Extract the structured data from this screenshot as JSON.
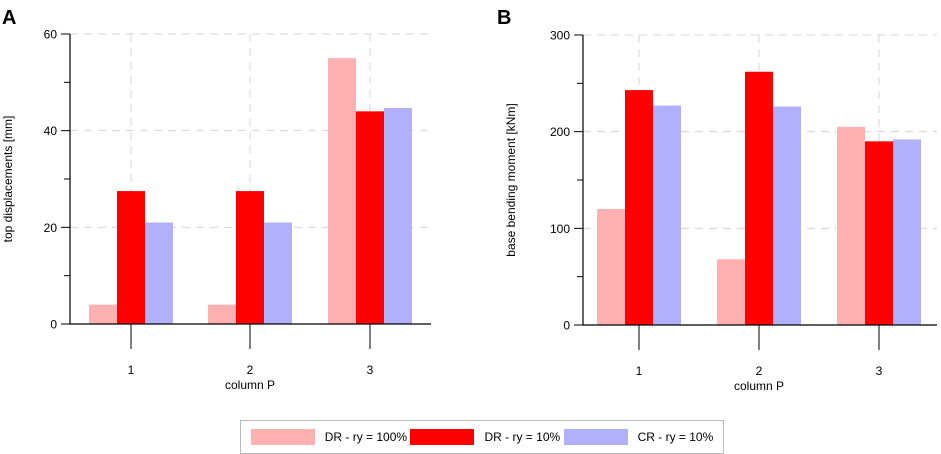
{
  "legend": [
    {
      "label": "DR - ry = 100%",
      "color": "#ffb1b1"
    },
    {
      "label": "DR - ry = 10%",
      "color": "#ff0000"
    },
    {
      "label": "CR - ry = 10%",
      "color": "#b0b0fb"
    }
  ],
  "chart_data": [
    {
      "panel_label": "A",
      "type": "bar",
      "categories": [
        "1",
        "2",
        "3"
      ],
      "xlabel": "column P",
      "ylabel": "top displacements [mm]",
      "ylim": [
        0,
        60
      ],
      "yticks": [
        0,
        20,
        40,
        60
      ],
      "grid": true,
      "series": [
        {
          "name": "DR - ry = 100%",
          "values": [
            4,
            4,
            55
          ]
        },
        {
          "name": "DR - ry = 10%",
          "values": [
            27.5,
            27.5,
            44
          ]
        },
        {
          "name": "CR - ry = 10%",
          "values": [
            21,
            21,
            44.7
          ]
        }
      ]
    },
    {
      "panel_label": "B",
      "type": "bar",
      "categories": [
        "1",
        "2",
        "3"
      ],
      "xlabel": "column P",
      "ylabel": "base bending moment [kNm]",
      "ylim": [
        0,
        300
      ],
      "yticks": [
        0,
        100,
        200,
        300
      ],
      "grid": true,
      "series": [
        {
          "name": "DR - ry = 100%",
          "values": [
            120,
            68,
            205
          ]
        },
        {
          "name": "DR - ry = 10%",
          "values": [
            243,
            262,
            190
          ]
        },
        {
          "name": "CR - ry = 10%",
          "values": [
            227,
            226,
            192
          ]
        }
      ]
    }
  ]
}
